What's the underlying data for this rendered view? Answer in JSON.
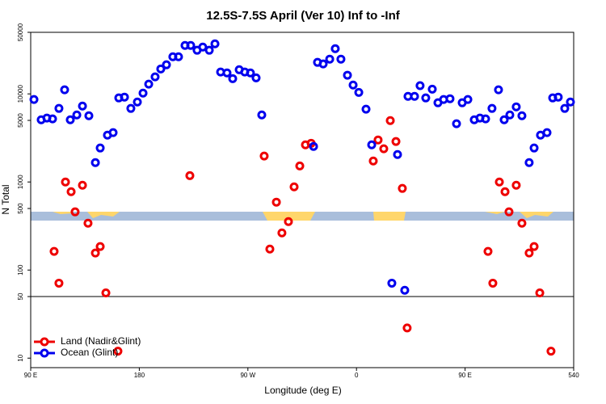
{
  "chart_data": {
    "type": "scatter",
    "title": "12.5S-7.5S April (Ver 10)   Inf to -Inf",
    "x_label": "Longitude (deg E)",
    "y_label": "N Total",
    "xlim": [
      90,
      540
    ],
    "ylim": [
      7.8,
      50000
    ],
    "log_y": true,
    "xticks": [
      {
        "value": 90,
        "label": "90 E"
      },
      180,
      {
        "value": 270,
        "label": "90 W"
      },
      {
        "value": 360,
        "label": "0"
      },
      {
        "value": 450,
        "label": "90 E"
      },
      540
    ],
    "yticks": [
      10,
      50,
      100,
      500,
      1000,
      5000,
      10000,
      50000
    ],
    "hline": 50,
    "legend": "lower left",
    "series": [
      {
        "name": "Land (Nadir&Glint)",
        "color": "#ee0000",
        "x": [
          109.4,
          113.4,
          118.8,
          123.5,
          126.8,
          132.9,
          137.5,
          143.6,
          147.6,
          152.3,
          162.3,
          221.9,
          283.5,
          288.2,
          293.6,
          298.2,
          303.6,
          308.3,
          313.0,
          317.7,
          322.4,
          373.9,
          377.9,
          382.6,
          388.0,
          392.7,
          398.0,
          402.0,
          469.0,
          473.0,
          478.4,
          483.1,
          486.4,
          492.4,
          497.1,
          503.1,
          507.2,
          511.9,
          521.2
        ],
        "values": [
          163,
          71,
          1000,
          776,
          458,
          918,
          340,
          156,
          185,
          55,
          12,
          1180,
          1970,
          173,
          590,
          264,
          355,
          881,
          1520,
          2640,
          2750,
          1730,
          3000,
          2380,
          4980,
          2880,
          845,
          22,
          163,
          71,
          1000,
          776,
          458,
          918,
          340,
          156,
          185,
          55,
          12
        ]
      },
      {
        "name": "Ocean (Glint)",
        "color": "#0000ee",
        "x": [
          92.7,
          98.7,
          103.4,
          108.1,
          113.4,
          118.1,
          122.8,
          128.2,
          132.9,
          138.2,
          143.6,
          147.6,
          153.6,
          158.3,
          163.0,
          167.7,
          173.0,
          178.4,
          183.1,
          187.8,
          193.1,
          197.8,
          202.5,
          207.8,
          212.5,
          217.9,
          222.6,
          227.9,
          232.6,
          238.0,
          242.7,
          247.4,
          252.7,
          257.4,
          262.8,
          267.4,
          272.1,
          276.8,
          281.5,
          324.4,
          327.7,
          332.4,
          337.8,
          342.4,
          347.1,
          352.5,
          357.2,
          361.9,
          367.9,
          372.6,
          389.3,
          394.0,
          400.0,
          402.7,
          408.1,
          412.7,
          417.4,
          422.8,
          427.5,
          432.2,
          437.5,
          442.9,
          447.6,
          452.3,
          457.6,
          462.3,
          467.0,
          472.3,
          477.7,
          482.4,
          487.1,
          492.4,
          497.1,
          503.1,
          507.2,
          512.5,
          517.9,
          522.6,
          527.2,
          532.6,
          537.3
        ],
        "values": [
          8630,
          5080,
          5310,
          5200,
          6840,
          11120,
          5080,
          5770,
          7280,
          5650,
          1660,
          2430,
          3400,
          3630,
          9000,
          9190,
          6840,
          8090,
          10200,
          12900,
          15600,
          19200,
          21400,
          26400,
          26400,
          35500,
          35500,
          31300,
          34000,
          31300,
          37000,
          17700,
          17300,
          14900,
          18800,
          17700,
          17300,
          15200,
          5770,
          2530,
          22800,
          21900,
          24800,
          32600,
          24800,
          16300,
          12600,
          10400,
          6700,
          2640,
          71,
          2050,
          59,
          9380,
          9380,
          12400,
          9000,
          11300,
          7930,
          8630,
          8810,
          4580,
          7930,
          8630,
          5080,
          5310,
          5200,
          6840,
          11120,
          5080,
          5770,
          7130,
          5650,
          1660,
          2430,
          3400,
          3630,
          9000,
          9190,
          6840,
          8090
        ]
      }
    ]
  }
}
